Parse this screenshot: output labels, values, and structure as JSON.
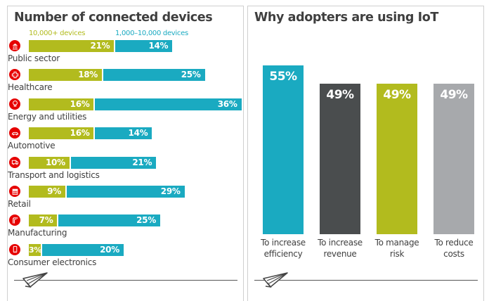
{
  "colors": {
    "lime": "#b2bb1e",
    "teal": "#1aaac1",
    "dark": "#4a4d4e",
    "grey": "#a7a9ac",
    "icon_red": "#e60000"
  },
  "chart_data": [
    {
      "type": "bar",
      "orientation": "horizontal-stacked",
      "title": "Number of connected devices",
      "categories": [
        "Public sector",
        "Healthcare",
        "Energy and utilities",
        "Automotive",
        "Transport and logistics",
        "Retail",
        "Manufacturing",
        "Consumer electronics"
      ],
      "icons": [
        "building-icon",
        "medical-cross-icon",
        "lightbulb-icon",
        "car-icon",
        "truck-icon",
        "shop-icon",
        "manufacturing-icon",
        "phone-icon"
      ],
      "series": [
        {
          "name": "10,000+ devices",
          "color": "#b2bb1e",
          "values": [
            21,
            18,
            16,
            16,
            10,
            9,
            7,
            3
          ],
          "labels": [
            "21%",
            "18%",
            "16%",
            "16%",
            "10%",
            "9%",
            "7%",
            "3%"
          ]
        },
        {
          "name": "1,000–10,000 devices",
          "color": "#1aaac1",
          "values": [
            14,
            25,
            36,
            14,
            21,
            29,
            25,
            20
          ],
          "labels": [
            "14%",
            "25%",
            "36%",
            "14%",
            "21%",
            "29%",
            "25%",
            "20%"
          ]
        }
      ],
      "legend": "top",
      "xlabel": "",
      "ylabel": "",
      "unit": "%"
    },
    {
      "type": "bar",
      "title": "Why adopters are using IoT",
      "categories": [
        "To increase efficiency",
        "To increase revenue",
        "To manage risk",
        "To reduce costs"
      ],
      "category_lines": [
        [
          "To increase",
          "efficiency"
        ],
        [
          "To increase",
          "revenue"
        ],
        [
          "To manage",
          "risk"
        ],
        [
          "To reduce",
          "costs"
        ]
      ],
      "values": [
        55,
        49,
        49,
        49
      ],
      "labels": [
        "55%",
        "49%",
        "49%",
        "49%"
      ],
      "colors": [
        "#1aaac1",
        "#4a4d4e",
        "#b2bb1e",
        "#a7a9ac"
      ],
      "xlabel": "",
      "ylabel": "",
      "unit": "%"
    }
  ]
}
